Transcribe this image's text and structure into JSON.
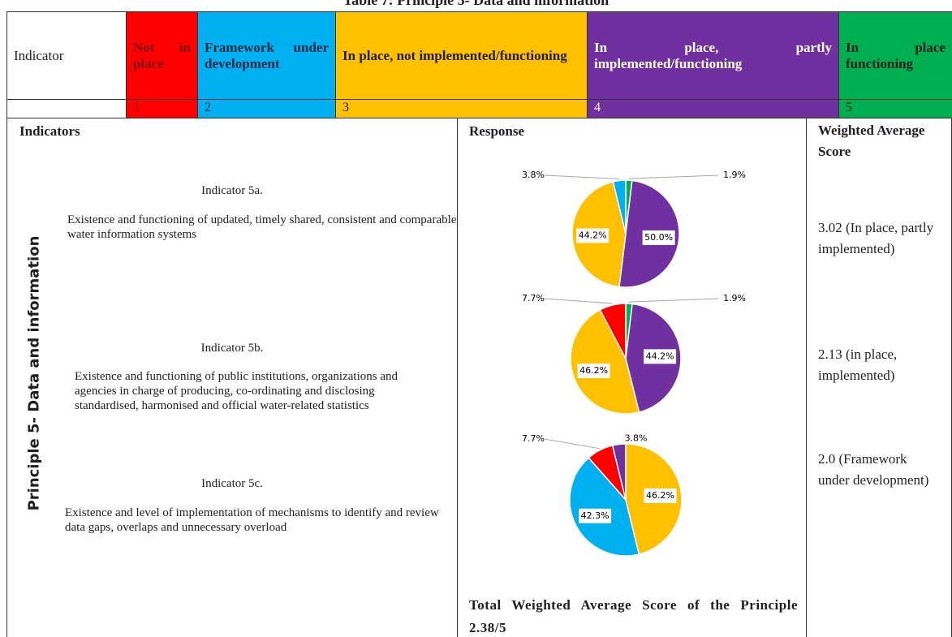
{
  "title": "Table 7: Principle 5- Data and information",
  "legend": {
    "header": "Indicator",
    "levels": [
      {
        "label": "Not in place",
        "score": 1,
        "color": "#ff0000",
        "text_color": "#7a1010"
      },
      {
        "label": "Framework under development",
        "score": 2,
        "color": "#00b0f0",
        "text_color": "#1f2a44"
      },
      {
        "label": "In place, not implemented/functioning",
        "score": 3,
        "color": "#ffc000",
        "text_color": "#1f1f1f"
      },
      {
        "label": "In place, partly implemented/functioning",
        "score": 4,
        "color": "#7030a0",
        "text_color": "#ffffff"
      },
      {
        "label": "In place functioning",
        "score": 5,
        "color": "#00b050",
        "text_color": "#1f1f1f"
      }
    ]
  },
  "columns": [
    "Indicators",
    "Response",
    "Weighted Average Score"
  ],
  "principle": "Principle 5- Data and information",
  "indicators": [
    {
      "name": "Indicator 5a.",
      "description": "Existence and functioning of updated, timely shared, consistent and comparable water information systems",
      "score": "3.02 (In place, partly implemented)",
      "chart": {
        "type": "pie",
        "values": [
          1.9,
          50.0,
          44.2,
          3.8
        ],
        "value_labels": [
          "1.9%",
          "50.0%",
          "44.2%",
          "3.8%"
        ],
        "colors": [
          "#00b050",
          "#7030a0",
          "#ffc000",
          "#00b0f0"
        ]
      }
    },
    {
      "name": "Indicator 5b.",
      "description": "Existence and functioning of public institutions, organizations and agencies in charge of producing, co-ordinating and disclosing standardised, harmonised and official water-related statistics",
      "score": "2.13 (in place, implemented)",
      "chart": {
        "type": "pie",
        "values": [
          1.9,
          44.2,
          46.2,
          7.7
        ],
        "value_labels": [
          "1.9%",
          "44.2%",
          "46.2%",
          "7.7%"
        ],
        "colors": [
          "#00b050",
          "#7030a0",
          "#ffc000",
          "#ff0000"
        ]
      }
    },
    {
      "name": "Indicator 5c.",
      "description": "Existence and level of implementation of mechanisms to identify and review data gaps, overlaps and unnecessary overload",
      "score": "2.0 (Framework under development)",
      "chart": {
        "type": "pie",
        "values": [
          46.2,
          42.3,
          7.7,
          3.8
        ],
        "value_labels": [
          "46.2%",
          "42.3%",
          "7.7%",
          "3.8%"
        ],
        "colors": [
          "#ffc000",
          "#00b0f0",
          "#ff0000",
          "#7030a0"
        ]
      }
    }
  ],
  "total": "Total Weighted Average Score of the Principle 2.38/5"
}
